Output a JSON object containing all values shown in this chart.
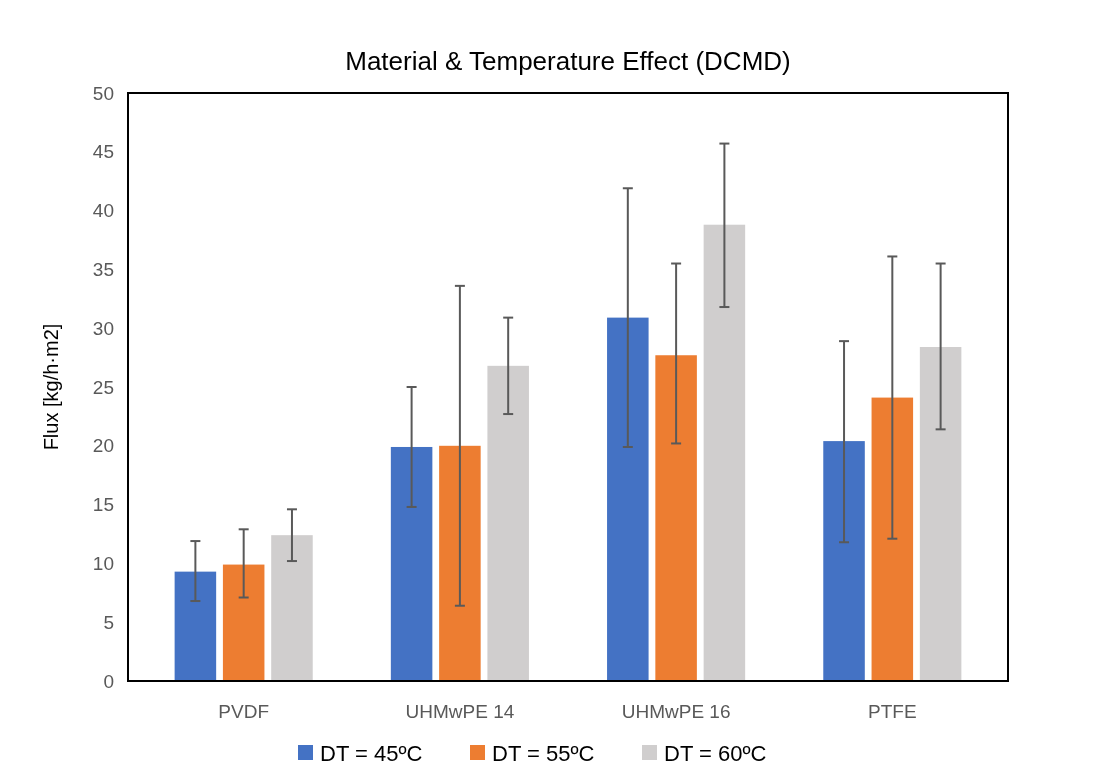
{
  "chart_data": {
    "type": "bar",
    "title": "Material & Temperature Effect (DCMD)",
    "ylabel": "Flux [kg/h·m2]",
    "categories": [
      "PVDF",
      "UHMwPE 14",
      "UHMwPE 16",
      "PTFE"
    ],
    "series": [
      {
        "name": "DT = 45ºC",
        "color": "#4472c4",
        "values": [
          9.3,
          19.9,
          30.9,
          20.4
        ],
        "errors": [
          [
            6.8,
            11.9
          ],
          [
            14.8,
            25.0
          ],
          [
            19.9,
            41.9
          ],
          [
            11.8,
            28.9
          ]
        ]
      },
      {
        "name": "DT = 55ºC",
        "color": "#ed7d31",
        "values": [
          9.9,
          20.0,
          27.7,
          24.1
        ],
        "errors": [
          [
            7.1,
            12.9
          ],
          [
            6.4,
            33.6
          ],
          [
            20.2,
            35.5
          ],
          [
            12.1,
            36.1
          ]
        ]
      },
      {
        "name": "DT = 60ºC",
        "color": "#d0cece",
        "values": [
          12.4,
          26.8,
          38.8,
          28.4
        ],
        "errors": [
          [
            10.2,
            14.6
          ],
          [
            22.7,
            30.9
          ],
          [
            31.8,
            45.7
          ],
          [
            21.4,
            35.5
          ]
        ]
      }
    ],
    "ylim": [
      0,
      50
    ],
    "yticks": [
      0,
      5,
      10,
      15,
      20,
      25,
      30,
      35,
      40,
      45,
      50
    ],
    "grid": false,
    "legend": "bottom"
  }
}
